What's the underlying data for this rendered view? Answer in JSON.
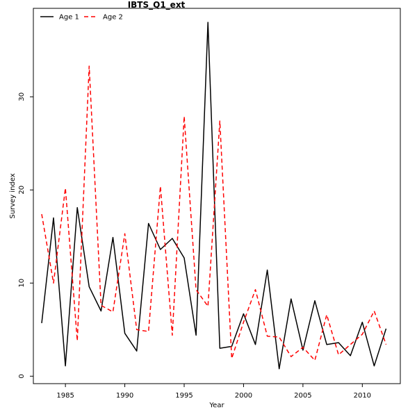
{
  "chart_data": {
    "type": "line",
    "title": "IBTS_Q1_ext",
    "xlabel": "Year",
    "ylabel": "Survey index",
    "xlim": [
      1982.3,
      2013.2
    ],
    "ylim": [
      -0.8,
      39.5
    ],
    "xticks": [
      1985,
      1990,
      1995,
      2000,
      2005,
      2010
    ],
    "yticks": [
      0,
      10,
      20,
      30
    ],
    "grid": false,
    "legend_position": "top-left",
    "x": [
      1983,
      1984,
      1985,
      1986,
      1987,
      1988,
      1989,
      1990,
      1991,
      1992,
      1993,
      1994,
      1995,
      1996,
      1997,
      1998,
      1999,
      2000,
      2001,
      2002,
      2003,
      2004,
      2005,
      2006,
      2007,
      2008,
      2009,
      2010,
      2011,
      2012
    ],
    "series": [
      {
        "name": "Age 1",
        "color": "#000000",
        "dash": "solid",
        "values": [
          5.7,
          17.0,
          1.1,
          18.1,
          9.6,
          7.0,
          14.9,
          4.6,
          2.7,
          16.4,
          13.6,
          14.8,
          12.7,
          4.4,
          38.0,
          3.0,
          3.2,
          6.7,
          3.4,
          11.4,
          0.8,
          8.3,
          2.8,
          8.1,
          3.4,
          3.6,
          2.2,
          5.8,
          1.1,
          5.1
        ]
      },
      {
        "name": "Age 2",
        "color": "#ff0000",
        "dash": "dashed",
        "values": [
          17.4,
          10.0,
          20.2,
          3.8,
          33.3,
          7.6,
          6.9,
          15.3,
          5.0,
          4.8,
          20.4,
          4.4,
          27.9,
          9.3,
          7.5,
          27.4,
          1.9,
          5.8,
          9.3,
          4.3,
          4.2,
          2.1,
          3.1,
          1.7,
          6.6,
          2.3,
          3.4,
          4.5,
          7.0,
          3.4
        ]
      }
    ]
  }
}
